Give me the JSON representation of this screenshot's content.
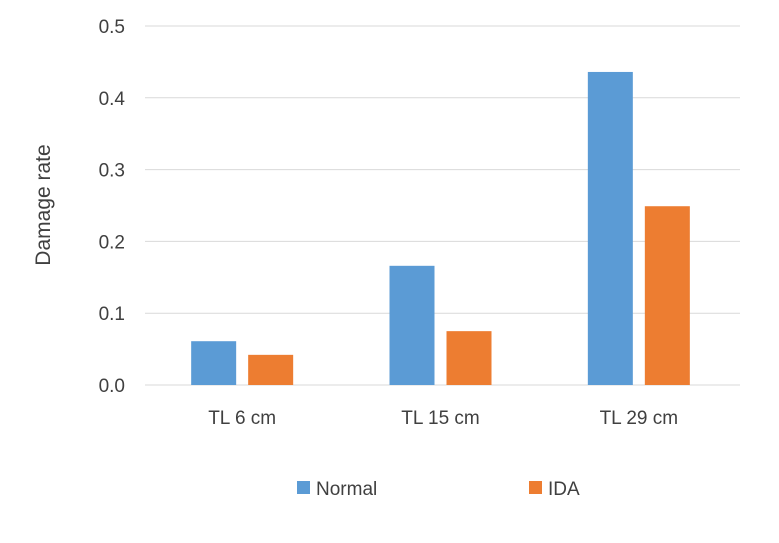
{
  "chart_data": {
    "type": "bar",
    "title": "",
    "xlabel": "",
    "ylabel": "Damage rate",
    "ylim": [
      0,
      0.5
    ],
    "yticks": [
      "0.0",
      "0.1",
      "0.2",
      "0.3",
      "0.4",
      "0.5"
    ],
    "categories": [
      "TL 6 cm",
      "TL 15 cm",
      "TL 29 cm"
    ],
    "series": [
      {
        "name": "Normal",
        "color": "#5B9BD5",
        "values": [
          0.061,
          0.166,
          0.436
        ]
      },
      {
        "name": "IDA",
        "color": "#ED7D31",
        "values": [
          0.042,
          0.075,
          0.249
        ]
      }
    ],
    "grid": true,
    "legend_position": "bottom"
  }
}
